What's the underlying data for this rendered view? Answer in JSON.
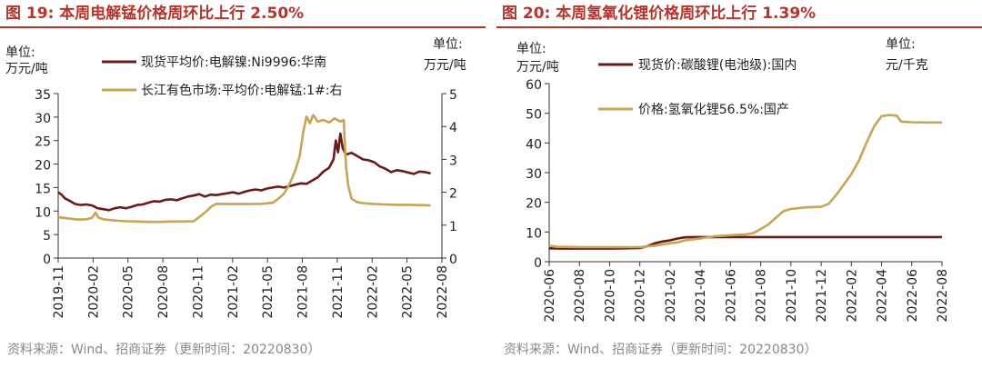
{
  "source_text": "资料来源：Wind、招商证券（更新时间：20220830）",
  "colors": {
    "title": "#b5342c",
    "series_dark": "#6b1a1a",
    "series_gold": "#c9a454"
  },
  "chart_data": [
    {
      "type": "line",
      "title": "图 19:  本周电解锰价格周环比上行 2.50%",
      "left_unit": [
        "单位:",
        "万元/吨"
      ],
      "right_unit": [
        "单位:",
        "万元/吨"
      ],
      "x_ticks": [
        "2019-11",
        "2020-02",
        "2020-05",
        "2020-08",
        "2020-11",
        "2021-02",
        "2021-05",
        "2021-08",
        "2021-11",
        "2022-02",
        "2022-05",
        "2022-08"
      ],
      "x_range": [
        0,
        34
      ],
      "ylim_left": [
        0,
        35
      ],
      "ylim_right": [
        0,
        5
      ],
      "y_ticks_left": [
        0,
        5,
        10,
        15,
        20,
        25,
        30,
        35
      ],
      "y_ticks_right": [
        0,
        1,
        2,
        3,
        4,
        5
      ],
      "series": [
        {
          "name": "现货平均价:电解镍:Ni9996:华南",
          "axis": "left",
          "color": "#6b1a1a",
          "points": [
            [
              0,
              14
            ],
            [
              0.3,
              13.5
            ],
            [
              0.6,
              12.7
            ],
            [
              1,
              12.2
            ],
            [
              1.5,
              11.5
            ],
            [
              2,
              11.3
            ],
            [
              2.5,
              11.4
            ],
            [
              3,
              11.2
            ],
            [
              3.5,
              10.6
            ],
            [
              4,
              10.4
            ],
            [
              4.5,
              10.2
            ],
            [
              5,
              10.6
            ],
            [
              5.5,
              10.8
            ],
            [
              6,
              10.6
            ],
            [
              6.5,
              10.9
            ],
            [
              7,
              11.3
            ],
            [
              7.5,
              11.4
            ],
            [
              8,
              11.8
            ],
            [
              8.5,
              12.1
            ],
            [
              9,
              12.0
            ],
            [
              9.5,
              12.4
            ],
            [
              10,
              12.5
            ],
            [
              10.5,
              12.3
            ],
            [
              11,
              12.7
            ],
            [
              11.5,
              13.1
            ],
            [
              12,
              13.3
            ],
            [
              12.5,
              13.6
            ],
            [
              13,
              13.1
            ],
            [
              13.5,
              13.5
            ],
            [
              14,
              13.4
            ],
            [
              14.5,
              13.6
            ],
            [
              15,
              13.8
            ],
            [
              15.5,
              14.0
            ],
            [
              16,
              13.7
            ],
            [
              16.5,
              14.1
            ],
            [
              17,
              14.4
            ],
            [
              17.5,
              14.6
            ],
            [
              18,
              14.4
            ],
            [
              18.5,
              14.8
            ],
            [
              19,
              15.0
            ],
            [
              19.5,
              15.2
            ],
            [
              20,
              15.0
            ],
            [
              20.5,
              15.3
            ],
            [
              21,
              15.6
            ],
            [
              21.5,
              15.9
            ],
            [
              22,
              15.8
            ],
            [
              22.5,
              16.5
            ],
            [
              23,
              17.2
            ],
            [
              23.5,
              18.4
            ],
            [
              24,
              19.2
            ],
            [
              24.4,
              21.0
            ],
            [
              24.6,
              25.0
            ],
            [
              24.8,
              22.5
            ],
            [
              25.0,
              26.5
            ],
            [
              25.2,
              23.5
            ],
            [
              25.5,
              22.0
            ],
            [
              26,
              22.4
            ],
            [
              26.5,
              21.7
            ],
            [
              27,
              21.0
            ],
            [
              27.5,
              20.8
            ],
            [
              28,
              20.4
            ],
            [
              28.5,
              19.5
            ],
            [
              29,
              19.0
            ],
            [
              29.5,
              18.3
            ],
            [
              30,
              18.7
            ],
            [
              30.5,
              18.5
            ],
            [
              31,
              18.2
            ],
            [
              31.5,
              17.9
            ],
            [
              32,
              18.4
            ],
            [
              32.5,
              18.3
            ],
            [
              33,
              18.0
            ]
          ]
        },
        {
          "name": "长江有色市场:平均价:电解锰:1#:右",
          "axis": "right",
          "color": "#c9a454",
          "points": [
            [
              0,
              1.24
            ],
            [
              0.5,
              1.22
            ],
            [
              1,
              1.2
            ],
            [
              1.5,
              1.18
            ],
            [
              2,
              1.17
            ],
            [
              2.5,
              1.18
            ],
            [
              3,
              1.22
            ],
            [
              3.3,
              1.38
            ],
            [
              3.6,
              1.22
            ],
            [
              4,
              1.18
            ],
            [
              5,
              1.14
            ],
            [
              6,
              1.12
            ],
            [
              7,
              1.11
            ],
            [
              8,
              1.1
            ],
            [
              9,
              1.1
            ],
            [
              10,
              1.11
            ],
            [
              11,
              1.11
            ],
            [
              12,
              1.12
            ],
            [
              12.5,
              1.25
            ],
            [
              13,
              1.38
            ],
            [
              13.5,
              1.55
            ],
            [
              14,
              1.65
            ],
            [
              15,
              1.64
            ],
            [
              16,
              1.64
            ],
            [
              17,
              1.64
            ],
            [
              18,
              1.65
            ],
            [
              19,
              1.68
            ],
            [
              19.5,
              1.8
            ],
            [
              20,
              1.95
            ],
            [
              20.5,
              2.25
            ],
            [
              21,
              2.65
            ],
            [
              21.4,
              3.1
            ],
            [
              21.7,
              3.8
            ],
            [
              22,
              4.3
            ],
            [
              22.3,
              4.1
            ],
            [
              22.6,
              4.35
            ],
            [
              23,
              4.15
            ],
            [
              23.5,
              4.2
            ],
            [
              24,
              4.12
            ],
            [
              24.5,
              4.25
            ],
            [
              25,
              4.15
            ],
            [
              25.3,
              4.2
            ],
            [
              25.5,
              2.8
            ],
            [
              25.7,
              2.2
            ],
            [
              26,
              1.8
            ],
            [
              26.5,
              1.7
            ],
            [
              27,
              1.67
            ],
            [
              28,
              1.64
            ],
            [
              29,
              1.63
            ],
            [
              30,
              1.62
            ],
            [
              31,
              1.62
            ],
            [
              32,
              1.61
            ],
            [
              33,
              1.6
            ]
          ]
        }
      ]
    },
    {
      "type": "line",
      "title": "图 20:  本周氢氧化锂价格周环比上行 1.39%",
      "left_unit": [
        "单位:",
        "万元/吨"
      ],
      "right_unit": [
        "单位:",
        "元/千克"
      ],
      "x_ticks": [
        "2020-06",
        "2020-08",
        "2020-10",
        "2020-12",
        "2021-02",
        "2021-04",
        "2021-06",
        "2021-08",
        "2021-10",
        "2021-12",
        "2022-02",
        "2022-04",
        "2022-06",
        "2022-08"
      ],
      "x_range": [
        0,
        26
      ],
      "ylim_left": [
        0,
        60
      ],
      "y_ticks_left": [
        0,
        10,
        20,
        30,
        40,
        50,
        60
      ],
      "series": [
        {
          "name": "现货价:碳酸锂(电池级):国内",
          "axis": "left",
          "color": "#6b1a1a",
          "points": [
            [
              0,
              4.5
            ],
            [
              1,
              4.4
            ],
            [
              2,
              4.4
            ],
            [
              3,
              4.4
            ],
            [
              4,
              4.4
            ],
            [
              5,
              4.5
            ],
            [
              6,
              4.6
            ],
            [
              6.5,
              5.2
            ],
            [
              7,
              6.2
            ],
            [
              7.5,
              6.8
            ],
            [
              8,
              7.2
            ],
            [
              8.5,
              7.8
            ],
            [
              9,
              8.2
            ],
            [
              9.5,
              8.3
            ],
            [
              10,
              8.3
            ],
            [
              11,
              8.3
            ],
            [
              12,
              8.3
            ],
            [
              13,
              8.3
            ],
            [
              14,
              8.3
            ],
            [
              15,
              8.3
            ],
            [
              16,
              8.3
            ],
            [
              17,
              8.3
            ],
            [
              18,
              8.3
            ],
            [
              19,
              8.3
            ],
            [
              20,
              8.3
            ],
            [
              21,
              8.3
            ],
            [
              22,
              8.3
            ],
            [
              23,
              8.3
            ],
            [
              24,
              8.3
            ],
            [
              25,
              8.3
            ],
            [
              26,
              8.3
            ]
          ]
        },
        {
          "name": "价格:氢氧化锂56.5%:国产",
          "axis": "left",
          "color": "#c9a454",
          "points": [
            [
              0,
              5.4
            ],
            [
              0.5,
              5.0
            ],
            [
              1,
              5.0
            ],
            [
              2,
              4.9
            ],
            [
              3,
              4.9
            ],
            [
              4,
              4.9
            ],
            [
              5,
              4.9
            ],
            [
              6,
              4.9
            ],
            [
              7,
              5.4
            ],
            [
              7.5,
              5.8
            ],
            [
              8,
              6.2
            ],
            [
              8.5,
              6.5
            ],
            [
              9,
              7.2
            ],
            [
              10,
              7.8
            ],
            [
              11,
              8.6
            ],
            [
              12,
              8.9
            ],
            [
              13,
              9.2
            ],
            [
              13.5,
              9.6
            ],
            [
              14,
              11.0
            ],
            [
              14.5,
              12.5
            ],
            [
              15,
              14.8
            ],
            [
              15.5,
              17.0
            ],
            [
              16,
              17.8
            ],
            [
              17,
              18.3
            ],
            [
              18,
              18.5
            ],
            [
              18.5,
              19.5
            ],
            [
              19,
              22.5
            ],
            [
              19.5,
              26.0
            ],
            [
              20,
              29.5
            ],
            [
              20.5,
              34.0
            ],
            [
              21,
              40.0
            ],
            [
              21.5,
              45.5
            ],
            [
              22,
              49.0
            ],
            [
              22.5,
              49.4
            ],
            [
              23,
              49.2
            ],
            [
              23.3,
              47.2
            ],
            [
              24,
              47.0
            ],
            [
              25,
              46.9
            ],
            [
              26,
              46.9
            ]
          ]
        }
      ]
    }
  ]
}
